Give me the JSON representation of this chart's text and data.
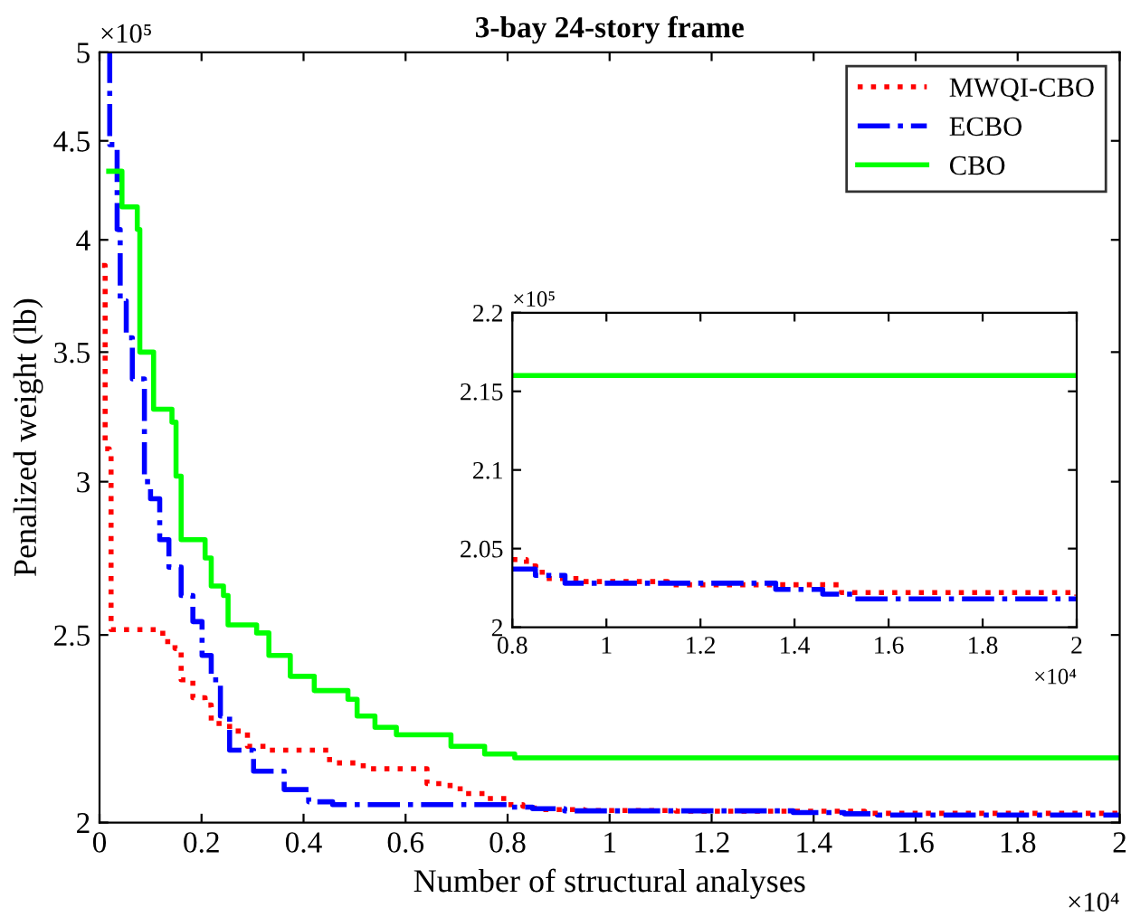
{
  "chart_data": [
    {
      "type": "step",
      "title": "3-bay 24-story frame",
      "xlabel": "Number of structural analyses",
      "ylabel": "Penalized weight (lb)",
      "log": "y",
      "xlim": [
        0,
        2
      ],
      "ylim": [
        2,
        5
      ],
      "xticks": [
        0,
        0.2,
        0.4,
        0.6,
        0.8,
        1,
        1.2,
        1.4,
        1.6,
        1.8,
        2
      ],
      "yticks": [
        2,
        2.5,
        3,
        3.5,
        4,
        4.5,
        5
      ],
      "annotations": [
        "×10⁵",
        "×10⁴"
      ],
      "legend": "top right",
      "grid": false,
      "series": [
        {
          "name": "MWQI-CBO",
          "color": "#ff0000",
          "line_style": "dotted",
          "x": [
            0.005,
            0.011,
            0.019,
            0.0226,
            0.124,
            0.148,
            0.16,
            0.183,
            0.207,
            0.219,
            0.255,
            0.29,
            0.326,
            0.451,
            0.517,
            0.642,
            0.671,
            0.707,
            0.755,
            0.8,
            0.83,
            0.85,
            0.87,
            0.95,
            1.13,
            1.5,
            2
          ],
          "values": [
            3.88,
            3.12,
            3.1,
            2.516,
            2.48,
            2.46,
            2.37,
            2.32,
            2.3,
            2.25,
            2.23,
            2.19,
            2.18,
            2.147,
            2.132,
            2.095,
            2.09,
            2.07,
            2.058,
            2.043,
            2.039,
            2.035,
            2.031,
            2.029,
            2.027,
            2.022,
            2.02
          ]
        },
        {
          "name": "ECBO",
          "color": "#0000ff",
          "line_style": "dashed",
          "x": [
            0.017,
            0.02,
            0.0345,
            0.0405,
            0.0524,
            0.0643,
            0.088,
            0.1,
            0.118,
            0.136,
            0.16,
            0.183,
            0.201,
            0.219,
            0.237,
            0.255,
            0.302,
            0.362,
            0.41,
            0.457,
            0.8,
            0.849,
            0.912,
            1.36,
            1.46,
            1.525,
            2
          ],
          "values": [
            5.0,
            4.48,
            4.05,
            3.72,
            3.56,
            3.39,
            3.0,
            2.94,
            2.8,
            2.71,
            2.62,
            2.54,
            2.44,
            2.37,
            2.27,
            2.18,
            2.126,
            2.08,
            2.05,
            2.043,
            2.037,
            2.033,
            2.028,
            2.024,
            2.021,
            2.018,
            2.018
          ]
        },
        {
          "name": "CBO",
          "color": "#00ff00",
          "line_style": "solid",
          "x": [
            0.018,
            0.044,
            0.074,
            0.079,
            0.106,
            0.142,
            0.15,
            0.16,
            0.207,
            0.219,
            0.243,
            0.252,
            0.308,
            0.332,
            0.374,
            0.421,
            0.487,
            0.505,
            0.54,
            0.582,
            0.689,
            0.755,
            0.814,
            2
          ],
          "values": [
            4.34,
            4.16,
            4.05,
            3.5,
            3.27,
            3.22,
            3.02,
            2.8,
            2.74,
            2.65,
            2.62,
            2.53,
            2.506,
            2.44,
            2.38,
            2.34,
            2.316,
            2.27,
            2.24,
            2.22,
            2.19,
            2.17,
            2.16,
            2.16
          ]
        }
      ]
    },
    {
      "type": "step",
      "xlim": [
        0.8,
        2
      ],
      "ylim": [
        2,
        2.2
      ],
      "xticks": [
        0.8,
        1,
        1.2,
        1.4,
        1.6,
        1.8,
        2
      ],
      "yticks": [
        2,
        2.05,
        2.1,
        2.15,
        2.2
      ],
      "annotations": [
        "×10⁵",
        "×10⁴"
      ],
      "grid": false,
      "series": [
        {
          "color": "#ff0000",
          "line_style": "dotted",
          "x": [
            0.8,
            0.83,
            0.85,
            0.87,
            0.95,
            1.13,
            1.5,
            2
          ],
          "values": [
            2.043,
            2.039,
            2.035,
            2.031,
            2.029,
            2.027,
            2.022,
            2.02
          ]
        },
        {
          "color": "#0000ff",
          "line_style": "dashed",
          "x": [
            0.8,
            0.849,
            0.912,
            1.36,
            1.46,
            1.525,
            2
          ],
          "values": [
            2.037,
            2.033,
            2.028,
            2.024,
            2.021,
            2.018,
            2.018
          ]
        },
        {
          "color": "#00ff00",
          "line_style": "solid",
          "x": [
            0.8,
            2
          ],
          "values": [
            2.16,
            2.16
          ]
        }
      ]
    }
  ]
}
